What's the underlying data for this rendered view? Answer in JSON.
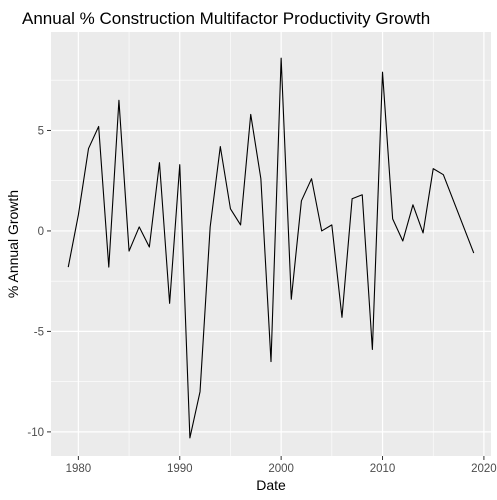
{
  "chart_data": {
    "type": "line",
    "title": "Annual % Construction Multifactor Productivity Growth",
    "xlabel": "Date",
    "ylabel": "% Annual Growth",
    "xlim": [
      1977.3,
      2020.7
    ],
    "ylim": [
      -11.2,
      9.9
    ],
    "grid": true,
    "legend": "none",
    "colors": {
      "panel": "#ebebeb",
      "grid_major": "#ffffff",
      "line": "#000000",
      "tick_text": "#4d4d4d"
    },
    "x_ticks": [
      1980,
      1990,
      2000,
      2010,
      2020
    ],
    "y_ticks": [
      -10,
      -5,
      0,
      5
    ],
    "x_tick_labels": [
      "1980",
      "1990",
      "2000",
      "2010",
      "2020"
    ],
    "y_tick_labels": [
      "-10",
      "-5",
      "0",
      "5"
    ],
    "series": [
      {
        "x": [
          1979,
          1980,
          1981,
          1982,
          1983,
          1984,
          1985,
          1986,
          1987,
          1988,
          1989,
          1990,
          1991,
          1992,
          1993,
          1994,
          1995,
          1996,
          1997,
          1998,
          1999,
          2000,
          2001,
          2002,
          2003,
          2004,
          2005,
          2006,
          2007,
          2008,
          2009,
          2010,
          2011,
          2012,
          2013,
          2014,
          2015,
          2016,
          2017,
          2018,
          2019
        ],
        "values": [
          -1.8,
          0.8,
          4.1,
          5.2,
          -1.8,
          6.5,
          -1.0,
          0.2,
          -0.8,
          3.4,
          -3.6,
          3.3,
          -10.3,
          -8.0,
          0.2,
          4.2,
          1.1,
          0.3,
          5.8,
          2.6,
          -6.5,
          8.6,
          -3.4,
          1.5,
          2.6,
          0.0,
          0.3,
          -4.3,
          1.6,
          1.8,
          -5.9,
          7.9,
          0.6,
          -0.5,
          1.3,
          -0.1,
          3.1,
          2.8,
          1.5,
          0.2,
          -1.1
        ]
      }
    ]
  }
}
